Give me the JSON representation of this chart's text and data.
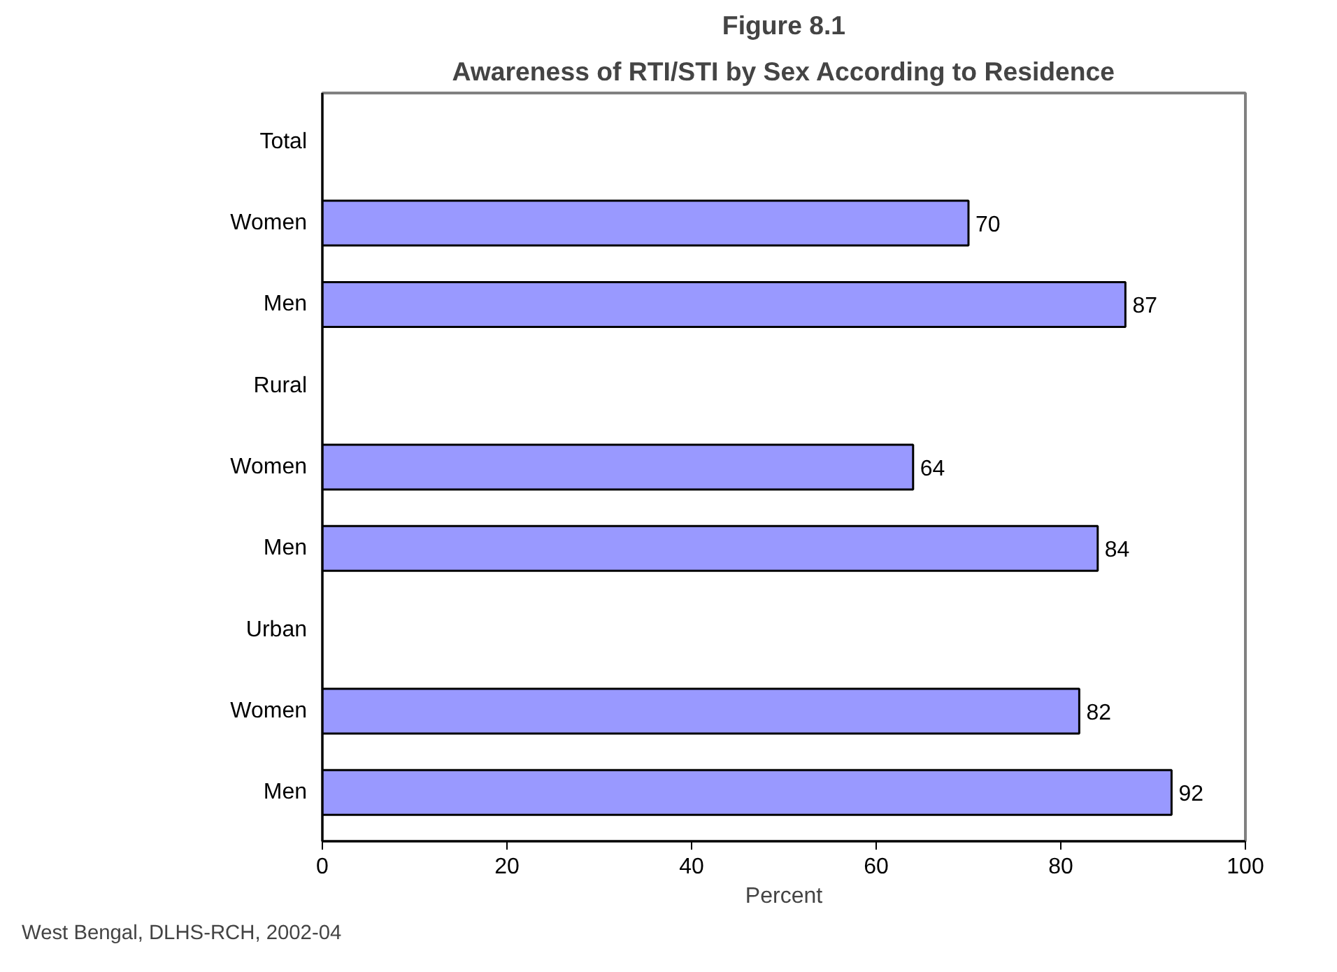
{
  "chart_data": {
    "type": "bar",
    "orientation": "horizontal",
    "title": "Figure 8.1",
    "subtitle": "Awareness of RTI/STI by Sex According to Residence",
    "xlabel": "Percent",
    "categories": [
      "Total",
      "Women",
      "Men",
      "Rural",
      "Women",
      "Men",
      "Urban",
      "Women",
      "Men"
    ],
    "values": [
      null,
      70,
      87,
      null,
      64,
      84,
      null,
      82,
      92
    ],
    "color": "#9999ff",
    "data_labels": true,
    "xlim": [
      0,
      100
    ],
    "xticks": [
      0,
      20,
      40,
      60,
      80,
      100
    ],
    "grid": false,
    "annotations": [
      "West Bengal, DLHS-RCH, 2002-04"
    ]
  }
}
